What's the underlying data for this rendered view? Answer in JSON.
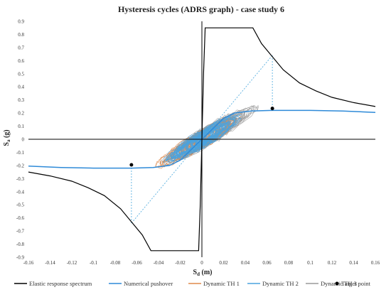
{
  "chart_data": {
    "type": "line",
    "title": "Hysteresis cycles (ADRS graph) - case study 6",
    "xlabel": "Sd (m)",
    "ylabel": "Sa (g)",
    "xlim": [
      -0.16,
      0.16
    ],
    "ylim": [
      -0.9,
      0.9
    ],
    "x_ticks": [
      "-0.16",
      "-0.14",
      "-0.12",
      "-0.1",
      "-0.08",
      "-0.06",
      "-0.04",
      "-0.02",
      "0",
      "0.02",
      "0.04",
      "0.06",
      "0.08",
      "0.1",
      "0.12",
      "0.14",
      "0.16"
    ],
    "y_ticks": [
      "-0.9",
      "-0.8",
      "-0.7",
      "-0.6",
      "-0.5",
      "-0.4",
      "-0.3",
      "-0.2",
      "-0.1",
      "0",
      "0.1",
      "0.2",
      "0.3",
      "0.4",
      "0.5",
      "0.6",
      "0.7",
      "0.8",
      "0.9"
    ],
    "grid": false,
    "legend_position": "bottom",
    "series": [
      {
        "name": "Elastic response spectrum",
        "color": "#000000",
        "x": [
          0,
          0.0015,
          0.003,
          0.047,
          0.055,
          0.065,
          0.075,
          0.09,
          0.105,
          0.12,
          0.14,
          0.16
        ],
        "y": [
          0,
          0.5,
          0.85,
          0.85,
          0.73,
          0.63,
          0.53,
          0.43,
          0.37,
          0.32,
          0.28,
          0.25
        ],
        "symmetric": true
      },
      {
        "name": "Numerical pushover",
        "color": "#2e8ad8",
        "x": [
          0,
          0.02,
          0.03,
          0.045,
          0.065,
          0.1,
          0.13,
          0.16
        ],
        "y": [
          0,
          0.16,
          0.2,
          0.215,
          0.22,
          0.22,
          0.215,
          0.205
        ],
        "symmetric": true
      },
      {
        "name": "Dynamic TH 1",
        "color": "#e08a4b"
      },
      {
        "name": "Dynamic TH 2",
        "color": "#4aa3df"
      },
      {
        "name": "Dynamic TH 3",
        "color": "#9a9a9a"
      },
      {
        "name": "Target point",
        "color": "#000000",
        "points": [
          [
            0.065,
            0.235
          ],
          [
            -0.065,
            -0.195
          ]
        ]
      }
    ],
    "construction_lines": {
      "color": "#5ab0e0",
      "lines": [
        [
          [
            0,
            0
          ],
          [
            0.065,
            0.64
          ]
        ],
        [
          [
            0.065,
            0.64
          ],
          [
            0.065,
            0.22
          ]
        ],
        [
          [
            0,
            0
          ],
          [
            -0.065,
            -0.64
          ]
        ],
        [
          [
            -0.065,
            -0.64
          ],
          [
            -0.065,
            -0.22
          ]
        ]
      ]
    }
  }
}
